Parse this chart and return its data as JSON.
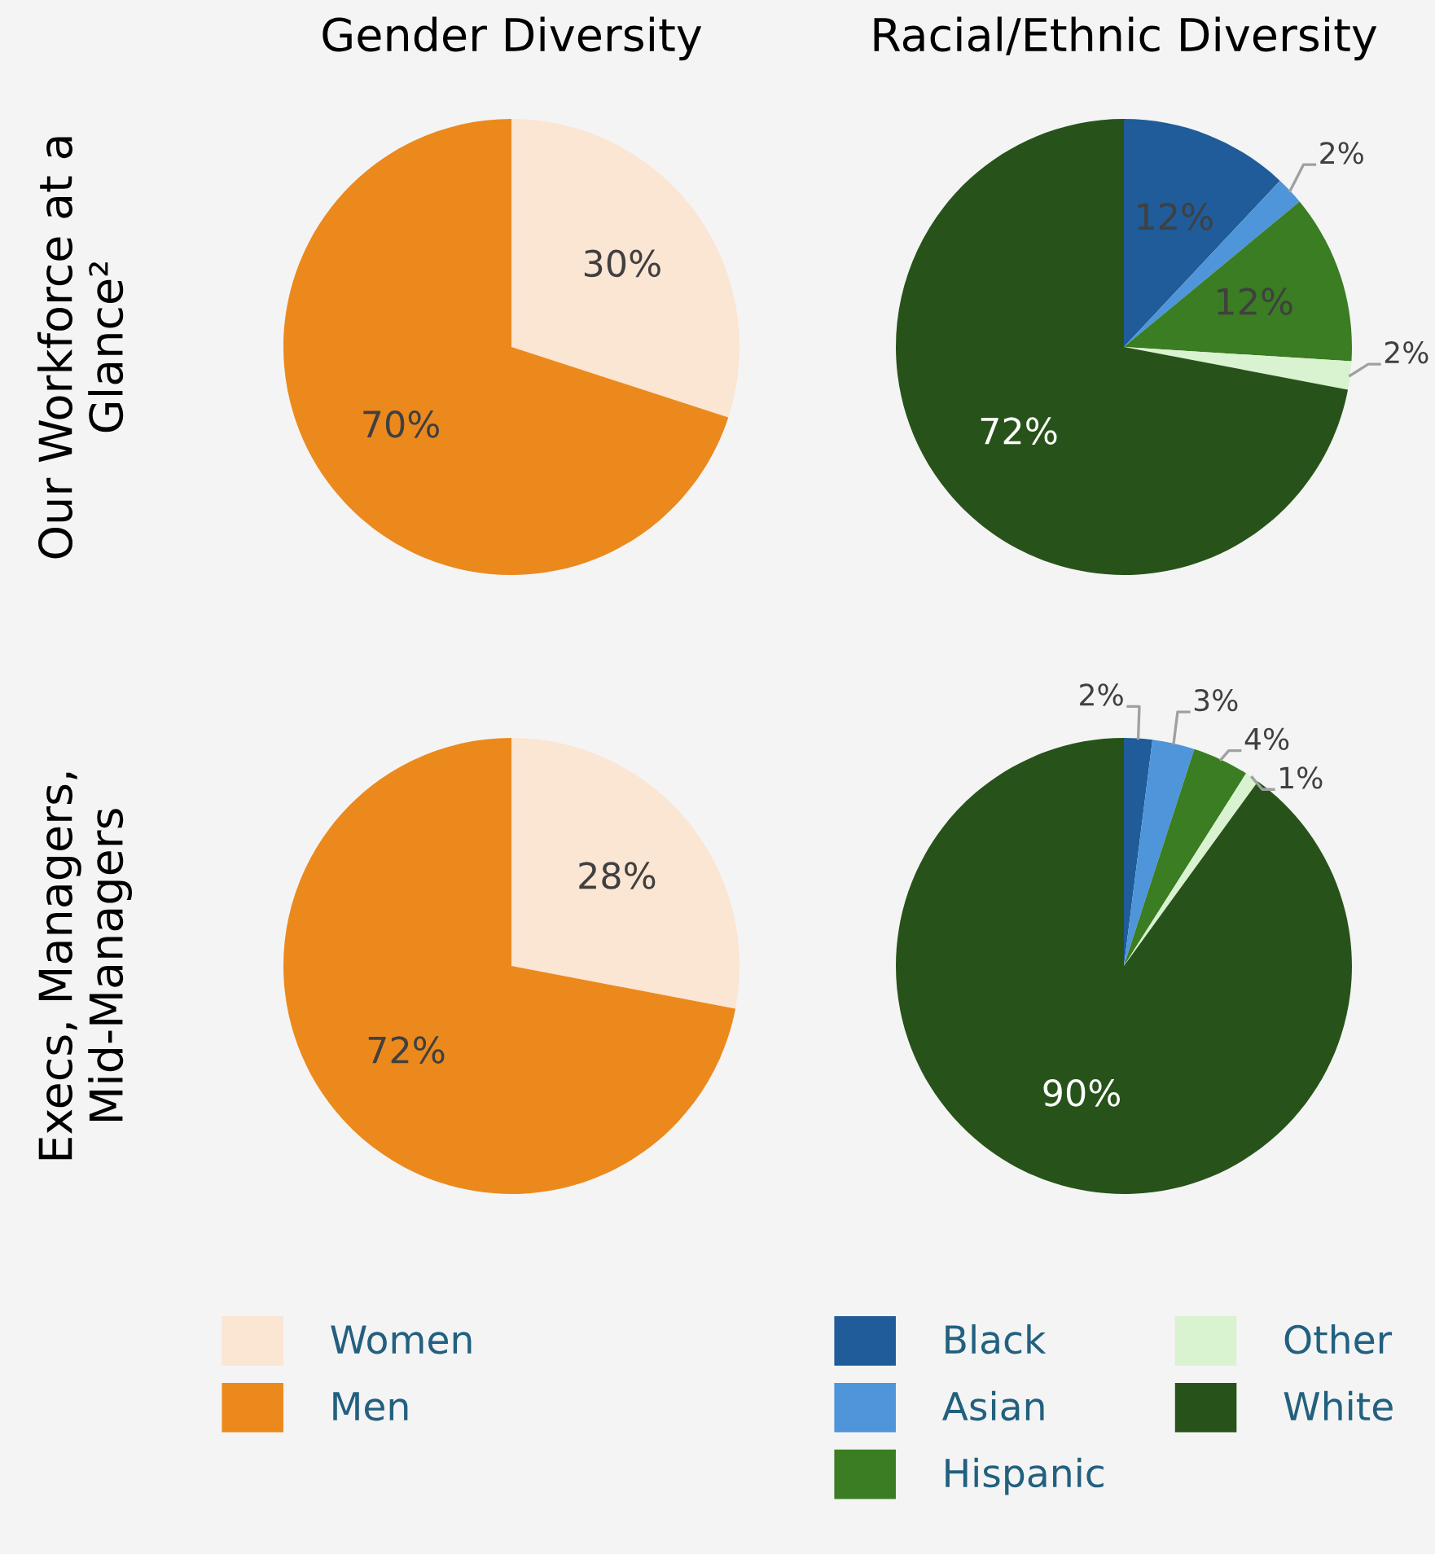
{
  "chart_data": [
    {
      "type": "pie",
      "title": "Gender Diversity",
      "ylabel": "Our Workforce at a\nGlance²",
      "categories": [
        "Women",
        "Men"
      ],
      "values": [
        30,
        70
      ],
      "value_labels": [
        "30%",
        "70%"
      ],
      "colors": [
        "#fbe5d3",
        "#ec891d"
      ],
      "legend": "bottom"
    },
    {
      "type": "pie",
      "title": "Racial/Ethnic Diversity",
      "categories": [
        "Black",
        "Asian",
        "Hispanic",
        "Other",
        "White"
      ],
      "values": [
        12,
        2,
        12,
        2,
        72
      ],
      "value_labels": [
        "12%",
        "2%",
        "12%",
        "2%",
        "72%"
      ],
      "colors": [
        "#1f5c99",
        "#4e95d9",
        "#3a7d22",
        "#d9f2d0",
        "#27531a"
      ],
      "legend": "bottom"
    },
    {
      "type": "pie",
      "ylabel": "Execs, Managers,\nMid-Managers",
      "categories": [
        null,
        null
      ],
      "values": [
        28,
        72
      ],
      "value_labels": [
        "28%",
        "72%"
      ],
      "colors": [
        "#fbe5d3",
        "#ec891d"
      ]
    },
    {
      "type": "pie",
      "categories": [
        null,
        null,
        null,
        null,
        null
      ],
      "values": [
        2,
        3,
        4,
        1,
        90
      ],
      "value_labels": [
        "2%",
        "3%",
        "4%",
        "1%",
        "90%"
      ],
      "colors": [
        "#1f5c99",
        "#4e95d9",
        "#3a7d22",
        "#d9f2d0",
        "#27531a"
      ]
    }
  ]
}
